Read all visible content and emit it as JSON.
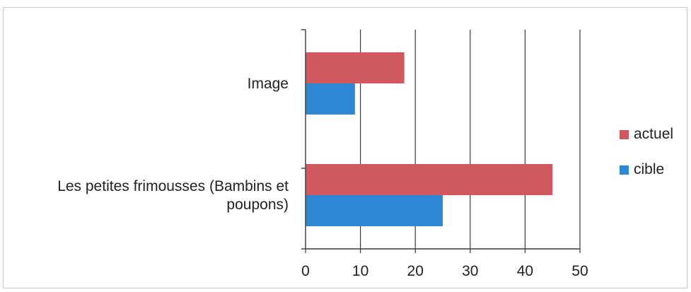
{
  "chart_data": {
    "type": "bar",
    "orientation": "horizontal",
    "categories": [
      [
        "Image"
      ],
      [
        "Les petites frimousses (Bambins et",
        "poupons)"
      ]
    ],
    "series": [
      {
        "name": "actuel",
        "color": "#d0595f",
        "values": [
          18,
          45
        ]
      },
      {
        "name": "cible",
        "color": "#2e87d4",
        "values": [
          9,
          25
        ]
      }
    ],
    "xlim": [
      0,
      50
    ],
    "xticks": [
      0,
      10,
      20,
      30,
      40,
      50
    ],
    "grid": "vertical",
    "legend_position": "right"
  }
}
